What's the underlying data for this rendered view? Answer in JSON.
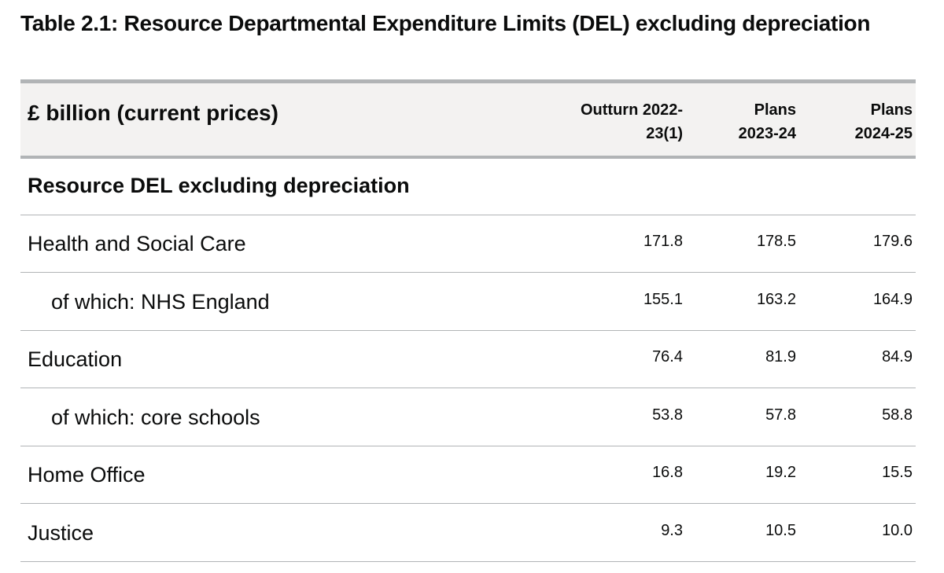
{
  "title": "Table 2.1: Resource Departmental Expenditure Limits (DEL) excluding depreciation",
  "table": {
    "unit_header": "£ billion (current prices)",
    "columns": [
      {
        "line1": "Outturn 2022-",
        "line2": "23(1)"
      },
      {
        "line1": "Plans",
        "line2": "2023-24"
      },
      {
        "line1": "Plans",
        "line2": "2024-25"
      }
    ],
    "section_title": "Resource DEL excluding depreciation",
    "rows": [
      {
        "label": "Health and Social Care",
        "values": [
          "171.8",
          "178.5",
          "179.6"
        ]
      },
      {
        "label": "of which: NHS England",
        "values": [
          "155.1",
          "163.2",
          "164.9"
        ]
      },
      {
        "label": "Education",
        "values": [
          "76.4",
          "81.9",
          "84.9"
        ]
      },
      {
        "label": "of which: core schools",
        "values": [
          "53.8",
          "57.8",
          "58.8"
        ]
      },
      {
        "label": "Home Office",
        "values": [
          "16.8",
          "19.2",
          "15.5"
        ]
      },
      {
        "label": "Justice",
        "values": [
          "9.3",
          "10.5",
          "10.0"
        ]
      }
    ]
  }
}
